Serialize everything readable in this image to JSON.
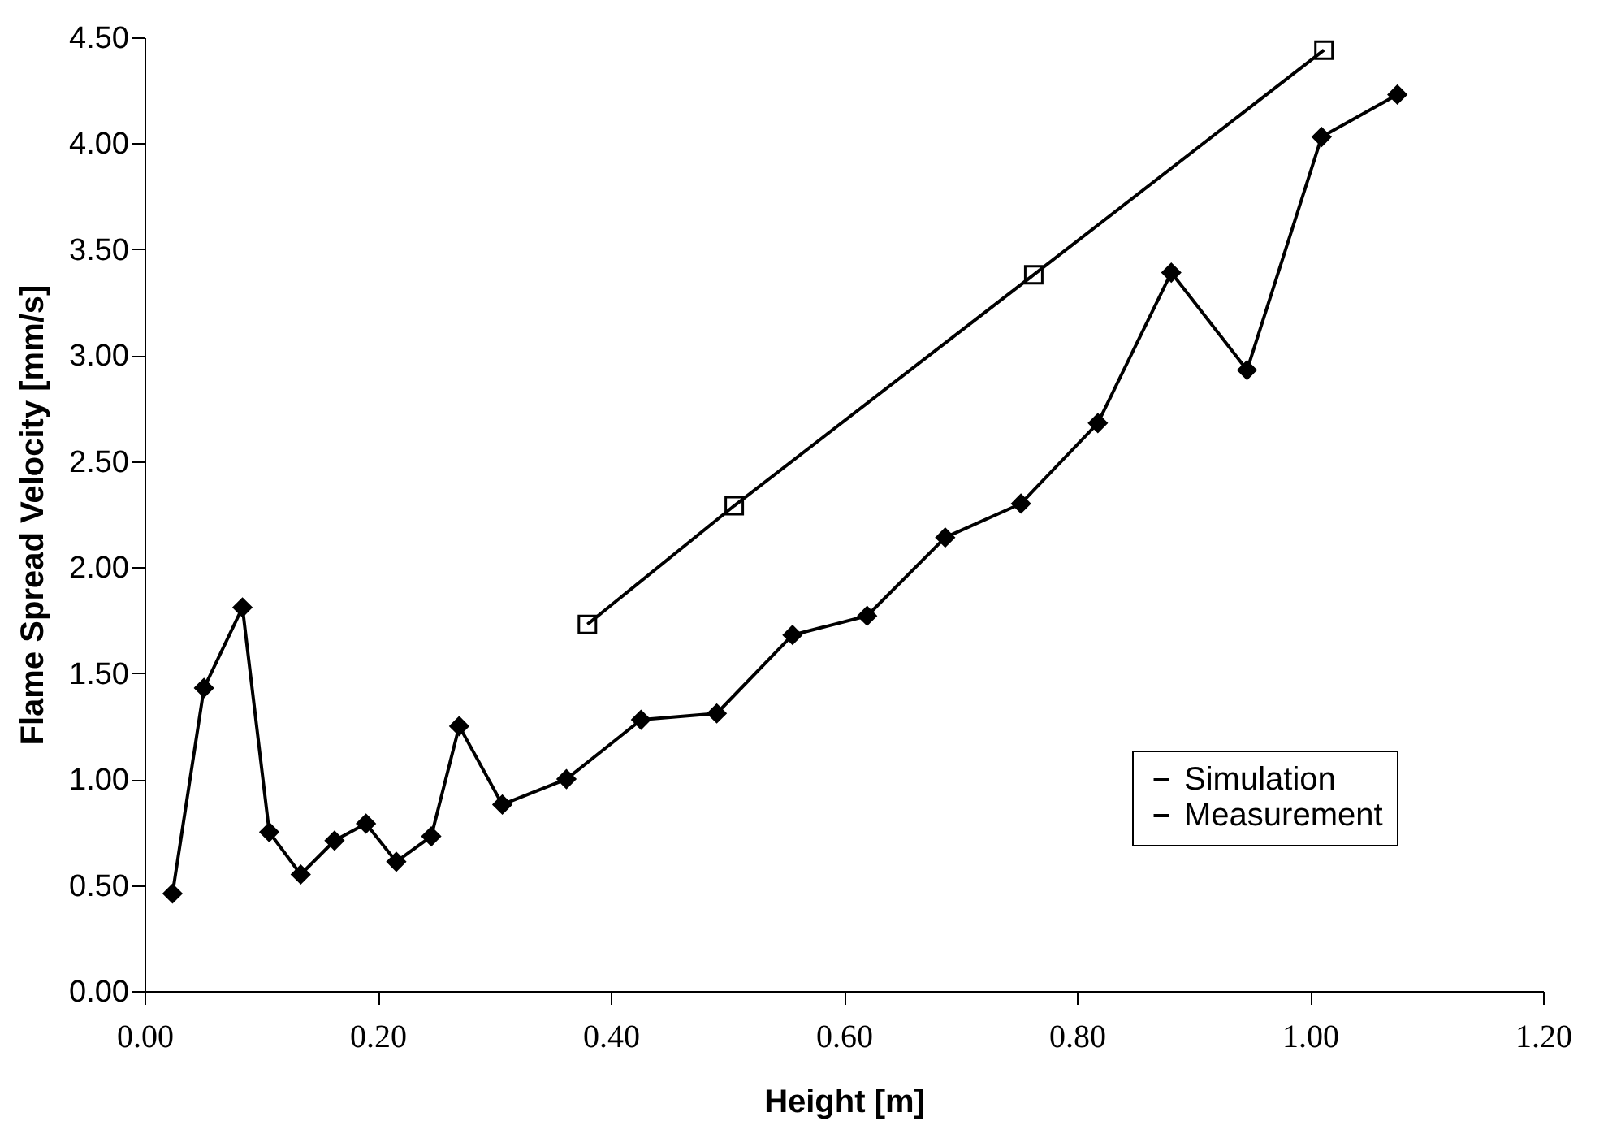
{
  "chart_data": {
    "type": "line",
    "xlabel": "Height [m]",
    "ylabel": "Flame Spread Velocity [mm/s]",
    "xlim": [
      0,
      1.2
    ],
    "xticks": [
      {
        "value": 0,
        "label": "0.00"
      },
      {
        "value": 0.2,
        "label": "0.20"
      },
      {
        "value": 0.4,
        "label": "0.40"
      },
      {
        "value": 0.6,
        "label": "0.60"
      },
      {
        "value": 0.8,
        "label": "0.80"
      },
      {
        "value": 1,
        "label": "1.00"
      },
      {
        "value": 1.2,
        "label": "1.20"
      }
    ],
    "ylim": [
      0,
      4.5
    ],
    "yticks": [
      {
        "value": 0,
        "label": "0.00"
      },
      {
        "value": 0.5,
        "label": "0.50"
      },
      {
        "value": 1,
        "label": "1.00"
      },
      {
        "value": 1.5,
        "label": "1.50"
      },
      {
        "value": 2,
        "label": "2.00"
      },
      {
        "value": 2.5,
        "label": "2.50"
      },
      {
        "value": 3,
        "label": "3.00"
      },
      {
        "value": 3.5,
        "label": "3.50"
      },
      {
        "value": 4,
        "label": "4.00"
      },
      {
        "value": 4.5,
        "label": "4.50"
      }
    ],
    "grid": false,
    "legend": "bottom right",
    "line_style": "solid",
    "series": [
      {
        "name": "Simulation",
        "color": "#000000",
        "marker": "diamond",
        "x": [
          0.024,
          0.051,
          0.084,
          0.107,
          0.134,
          0.163,
          0.19,
          0.216,
          0.246,
          0.27,
          0.307,
          0.362,
          0.426,
          0.491,
          0.556,
          0.62,
          0.687,
          0.752,
          0.818,
          0.881,
          0.946,
          1.01,
          1.075
        ],
        "values": [
          0.46,
          1.43,
          1.81,
          0.75,
          0.55,
          0.71,
          0.79,
          0.61,
          0.73,
          1.25,
          0.88,
          1.0,
          1.28,
          1.31,
          1.68,
          1.77,
          2.14,
          2.3,
          2.68,
          3.39,
          2.93,
          4.03,
          4.23
        ]
      },
      {
        "name": "Measurement",
        "color": "#000000",
        "marker": "square",
        "x": [
          0.38,
          0.506,
          0.763,
          1.012
        ],
        "values": [
          1.73,
          2.29,
          3.38,
          4.44
        ]
      }
    ]
  }
}
